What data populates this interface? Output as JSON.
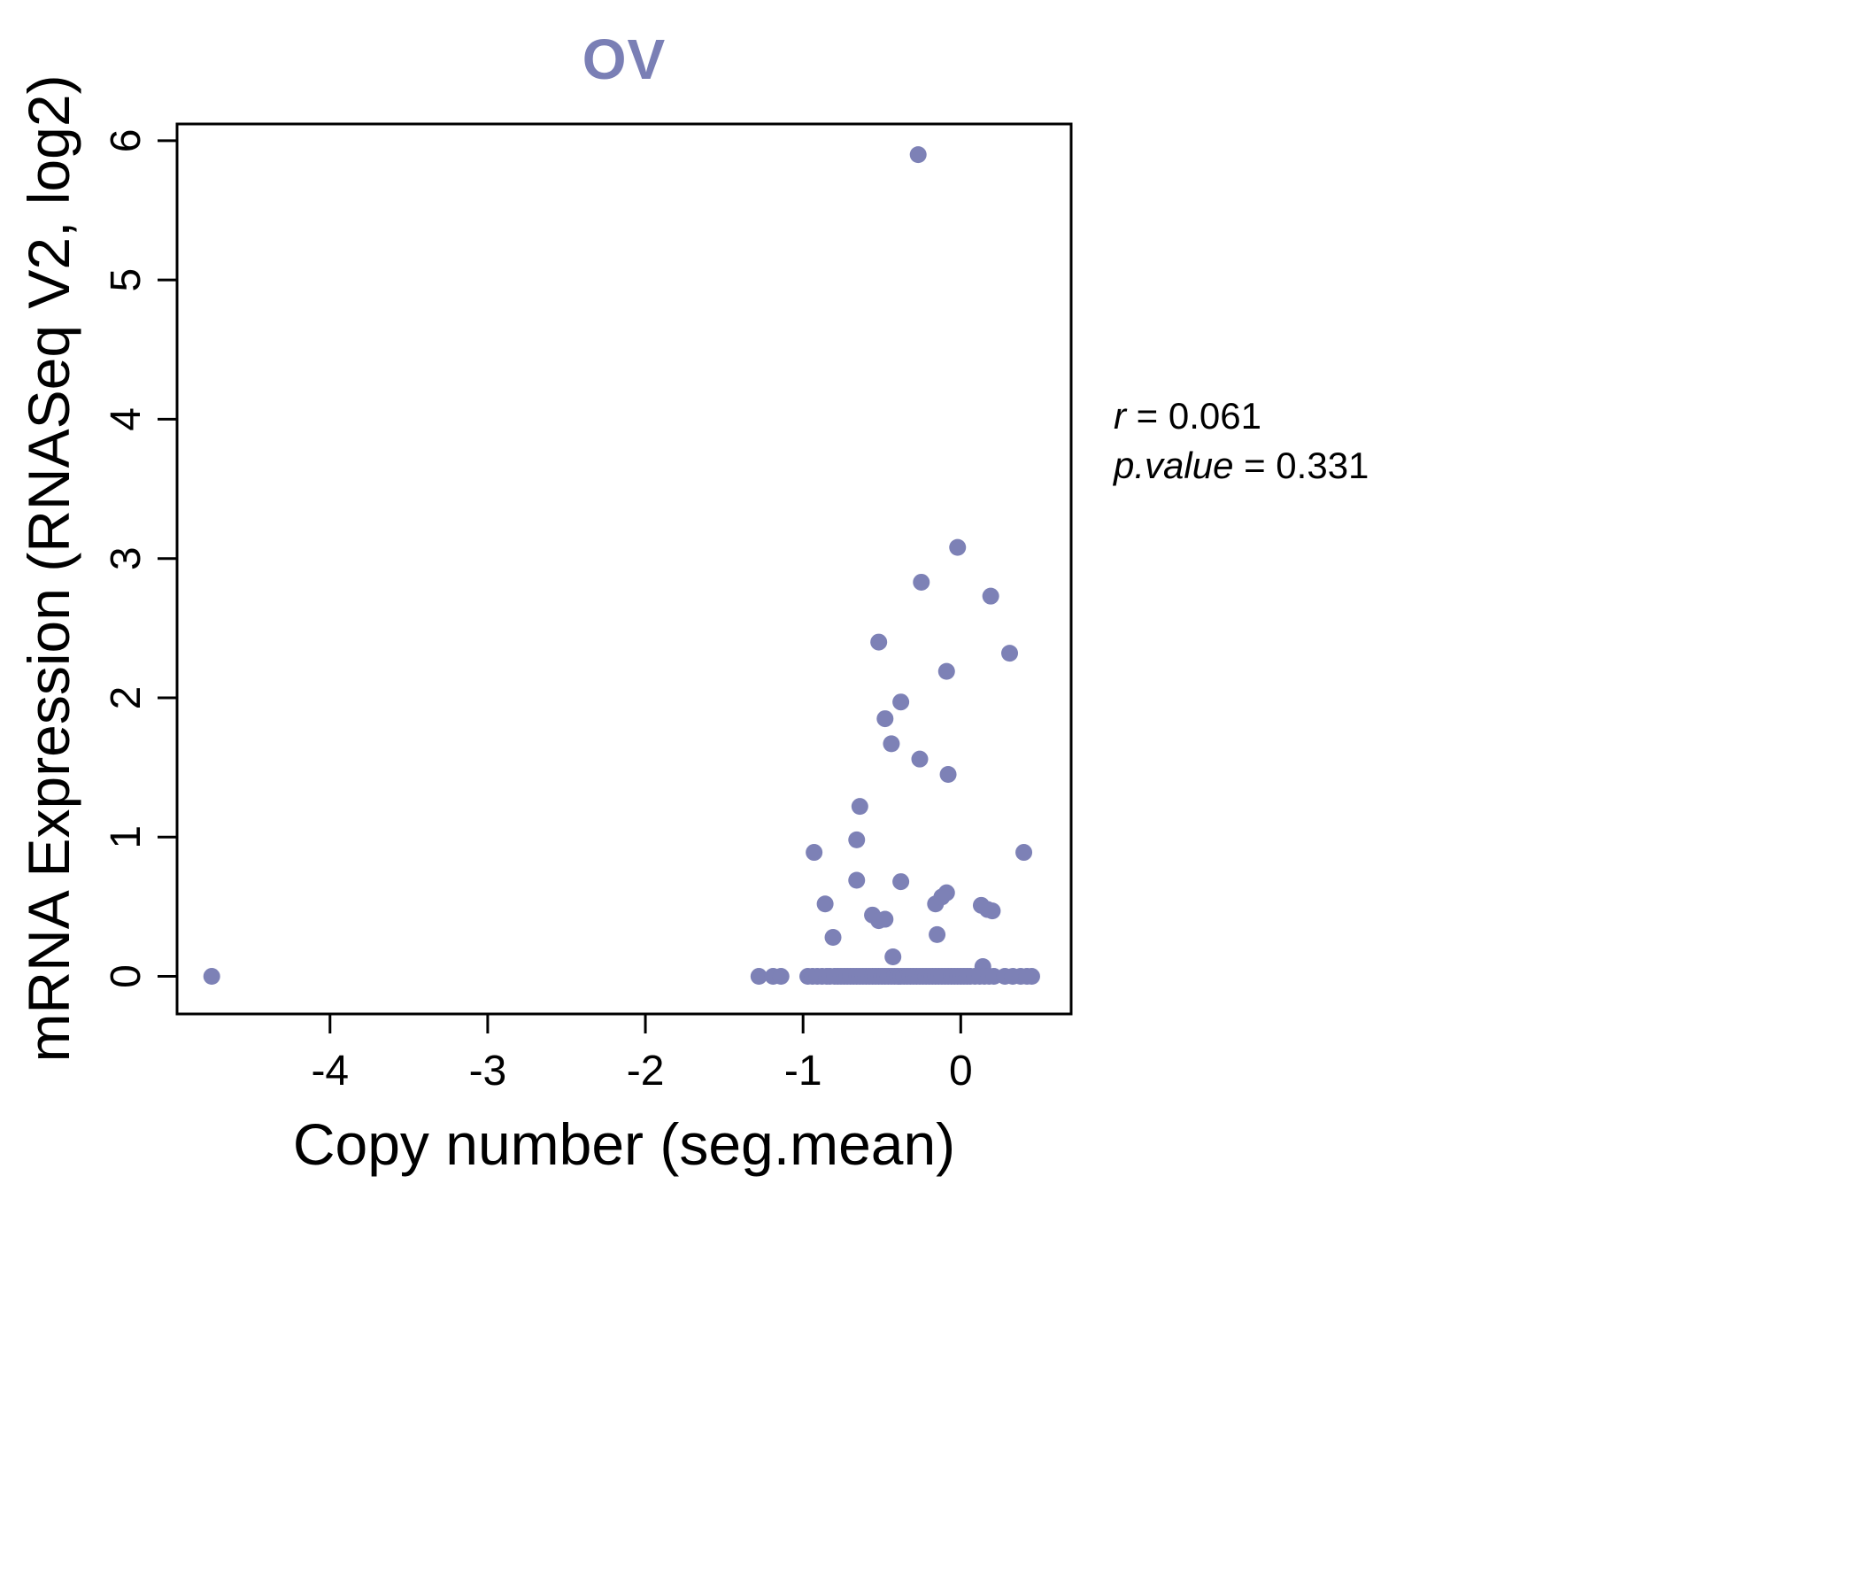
{
  "chart_data": {
    "type": "scatter",
    "title": "OV",
    "xlabel": "Copy number (seg.mean)",
    "ylabel": "mRNA Expression (RNASeq V2, log2)",
    "xlim": [
      -4.97,
      0.7
    ],
    "ylim": [
      -0.27,
      6.12
    ],
    "xticks": [
      -4,
      -3,
      -2,
      -1,
      0
    ],
    "yticks": [
      0,
      1,
      2,
      3,
      4,
      5,
      6
    ],
    "grid": false,
    "point_color": "#7d81b6",
    "title_color": "#7a7fb5",
    "axis_color": "#000000",
    "annotation": [
      {
        "var": "r",
        "rest": " = 0.061"
      },
      {
        "var": "p.value",
        "rest": " = 0.331"
      }
    ],
    "points": [
      [
        -4.75,
        0.0
      ],
      [
        -0.27,
        5.9
      ],
      [
        -0.02,
        3.08
      ],
      [
        -0.25,
        2.83
      ],
      [
        0.19,
        2.73
      ],
      [
        -0.52,
        2.4
      ],
      [
        0.31,
        2.32
      ],
      [
        -0.09,
        2.19
      ],
      [
        -0.38,
        1.97
      ],
      [
        -0.48,
        1.85
      ],
      [
        -0.44,
        1.67
      ],
      [
        -0.26,
        1.56
      ],
      [
        -0.08,
        1.45
      ],
      [
        -0.64,
        1.22
      ],
      [
        -0.66,
        0.98
      ],
      [
        -0.93,
        0.89
      ],
      [
        0.4,
        0.89
      ],
      [
        -0.66,
        0.69
      ],
      [
        -0.38,
        0.68
      ],
      [
        -0.86,
        0.52
      ],
      [
        -0.16,
        0.52
      ],
      [
        -0.12,
        0.57
      ],
      [
        -0.09,
        0.6
      ],
      [
        0.13,
        0.51
      ],
      [
        0.17,
        0.48
      ],
      [
        0.2,
        0.47
      ],
      [
        -0.56,
        0.44
      ],
      [
        -0.52,
        0.4
      ],
      [
        -0.48,
        0.41
      ],
      [
        -0.81,
        0.28
      ],
      [
        -0.15,
        0.3
      ],
      [
        -0.43,
        0.14
      ],
      [
        0.14,
        0.07
      ],
      [
        -1.28,
        0.0
      ],
      [
        -1.19,
        0.0
      ],
      [
        -1.14,
        0.0
      ],
      [
        -0.97,
        0.0
      ],
      [
        -0.94,
        0.0
      ],
      [
        -0.91,
        0.0
      ],
      [
        -0.88,
        0.0
      ],
      [
        -0.85,
        0.0
      ],
      [
        -0.83,
        0.0
      ],
      [
        -0.8,
        0.0
      ],
      [
        -0.78,
        0.0
      ],
      [
        -0.76,
        0.0
      ],
      [
        -0.74,
        0.0
      ],
      [
        -0.72,
        0.0
      ],
      [
        -0.7,
        0.0
      ],
      [
        -0.68,
        0.0
      ],
      [
        -0.66,
        0.0
      ],
      [
        -0.64,
        0.0
      ],
      [
        -0.62,
        0.0
      ],
      [
        -0.6,
        0.0
      ],
      [
        -0.58,
        0.0
      ],
      [
        -0.56,
        0.0
      ],
      [
        -0.54,
        0.0
      ],
      [
        -0.52,
        0.0
      ],
      [
        -0.5,
        0.0
      ],
      [
        -0.48,
        0.0
      ],
      [
        -0.46,
        0.0
      ],
      [
        -0.44,
        0.0
      ],
      [
        -0.42,
        0.0
      ],
      [
        -0.4,
        0.0
      ],
      [
        -0.38,
        0.0
      ],
      [
        -0.36,
        0.0
      ],
      [
        -0.34,
        0.0
      ],
      [
        -0.32,
        0.0
      ],
      [
        -0.3,
        0.0
      ],
      [
        -0.28,
        0.0
      ],
      [
        -0.26,
        0.0
      ],
      [
        -0.24,
        0.0
      ],
      [
        -0.22,
        0.0
      ],
      [
        -0.2,
        0.0
      ],
      [
        -0.18,
        0.0
      ],
      [
        -0.16,
        0.0
      ],
      [
        -0.14,
        0.0
      ],
      [
        -0.12,
        0.0
      ],
      [
        -0.1,
        0.0
      ],
      [
        -0.08,
        0.0
      ],
      [
        -0.06,
        0.0
      ],
      [
        -0.04,
        0.0
      ],
      [
        -0.02,
        0.0
      ],
      [
        0.0,
        0.0
      ],
      [
        0.02,
        0.0
      ],
      [
        0.04,
        0.0
      ],
      [
        0.06,
        0.0
      ],
      [
        0.09,
        0.0
      ],
      [
        0.12,
        0.0
      ],
      [
        0.15,
        0.0
      ],
      [
        0.18,
        0.0
      ],
      [
        0.21,
        0.0
      ],
      [
        0.28,
        0.0
      ],
      [
        0.33,
        0.0
      ],
      [
        0.38,
        0.0
      ],
      [
        0.42,
        0.0
      ],
      [
        0.45,
        0.0
      ]
    ]
  }
}
